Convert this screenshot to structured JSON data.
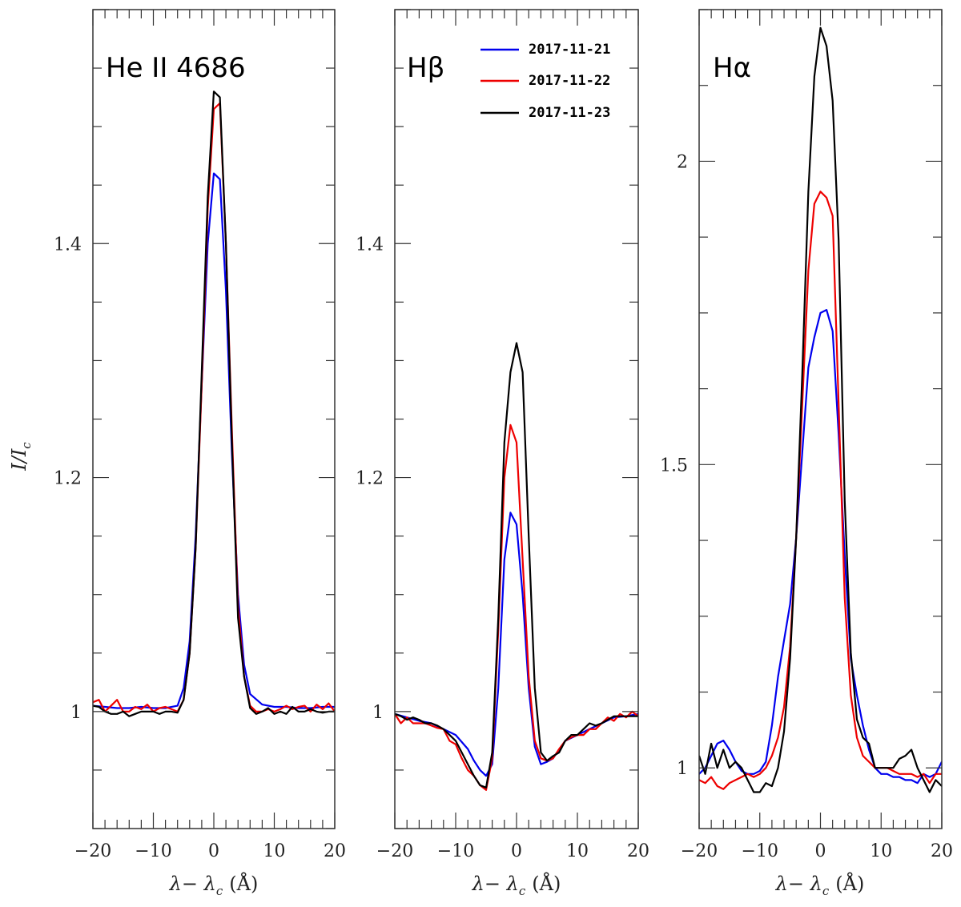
{
  "colors": {
    "2017-11-21": "#0000ee",
    "2017-11-22": "#ee0000",
    "2017-11-23": "#000000"
  },
  "legend": [
    "2017-11-21",
    "2017-11-22",
    "2017-11-23"
  ],
  "ylabel": "I/I",
  "ylabel_sub": "c",
  "chart_data": [
    {
      "type": "line",
      "title": "He II 4686",
      "xlabel": "λ− λ",
      "xlabel_sub": "c",
      "xlabel_unit": "(Å)",
      "xlim": [
        -20,
        20
      ],
      "ylim": [
        0.9,
        1.6
      ],
      "x_ticks": [
        -20,
        -10,
        0,
        10,
        20
      ],
      "x_tick_labels": [
        "−20",
        "−10",
        "0",
        "10",
        "20"
      ],
      "y_ticks": [
        1.0,
        1.2,
        1.4
      ],
      "y_tick_labels": [
        "1",
        "1.2",
        "1.4"
      ],
      "series": [
        {
          "name": "2017-11-21",
          "x": [
            -20,
            -18,
            -16,
            -14,
            -12,
            -10,
            -8,
            -6,
            -5,
            -4,
            -3,
            -2,
            -1,
            0,
            1,
            2,
            3,
            4,
            5,
            6,
            8,
            10,
            12,
            14,
            16,
            18,
            20
          ],
          "y": [
            1.005,
            1.004,
            1.003,
            1.003,
            1.004,
            1.003,
            1.003,
            1.005,
            1.02,
            1.06,
            1.15,
            1.28,
            1.4,
            1.46,
            1.455,
            1.36,
            1.22,
            1.1,
            1.04,
            1.015,
            1.006,
            1.004,
            1.004,
            1.003,
            1.003,
            1.004,
            1.004
          ]
        },
        {
          "name": "2017-11-22",
          "x": [
            -20,
            -19,
            -18,
            -17,
            -16,
            -15,
            -14,
            -13,
            -12,
            -11,
            -10,
            -9,
            -8,
            -7,
            -6,
            -5,
            -4,
            -3,
            -2,
            -1,
            0,
            1,
            2,
            3,
            4,
            5,
            6,
            7,
            8,
            9,
            10,
            11,
            12,
            13,
            14,
            15,
            16,
            17,
            18,
            19,
            20
          ],
          "y": [
            1.008,
            1.01,
            1.0,
            1.005,
            1.01,
            1.0,
            1.0,
            1.004,
            1.002,
            1.006,
            1.0,
            1.003,
            1.004,
            1.002,
            1.0,
            1.01,
            1.05,
            1.14,
            1.28,
            1.43,
            1.515,
            1.52,
            1.4,
            1.24,
            1.09,
            1.03,
            1.005,
            1.0,
            1.0,
            1.002,
            1.0,
            1.002,
            1.005,
            1.002,
            1.004,
            1.005,
            1.0,
            1.006,
            1.002,
            1.007,
            1.0
          ]
        },
        {
          "name": "2017-11-23",
          "x": [
            -20,
            -19,
            -18,
            -17,
            -16,
            -15,
            -14,
            -13,
            -12,
            -11,
            -10,
            -9,
            -8,
            -7,
            -6,
            -5,
            -4,
            -3,
            -2,
            -1,
            0,
            1,
            2,
            3,
            4,
            5,
            6,
            7,
            8,
            9,
            10,
            11,
            12,
            13,
            14,
            15,
            16,
            17,
            18,
            19,
            20
          ],
          "y": [
            1.005,
            1.004,
            1.0,
            0.998,
            0.998,
            1.0,
            0.996,
            0.998,
            1.0,
            1.0,
            1.0,
            0.998,
            1.0,
            1.0,
            0.999,
            1.01,
            1.05,
            1.14,
            1.29,
            1.44,
            1.53,
            1.525,
            1.4,
            1.23,
            1.08,
            1.03,
            1.003,
            0.998,
            1.0,
            1.003,
            0.998,
            1.0,
            0.998,
            1.004,
            1.0,
            1.0,
            1.002,
            1.0,
            0.999,
            1.0,
            1.0
          ]
        }
      ]
    },
    {
      "type": "line",
      "title": "Hβ",
      "xlabel": "λ− λ",
      "xlabel_sub": "c",
      "xlabel_unit": "(Å)",
      "xlim": [
        -20,
        20
      ],
      "ylim": [
        0.9,
        1.6
      ],
      "x_ticks": [
        -20,
        -10,
        0,
        10,
        20
      ],
      "x_tick_labels": [
        "−20",
        "−10",
        "0",
        "10",
        "20"
      ],
      "y_ticks": [
        1.0,
        1.2,
        1.4
      ],
      "y_tick_labels": [
        "1",
        "1.2",
        "1.4"
      ],
      "series": [
        {
          "name": "2017-11-21",
          "x": [
            -20,
            -18,
            -16,
            -14,
            -12,
            -10,
            -8,
            -7,
            -6,
            -5,
            -4,
            -3,
            -2,
            -1,
            0,
            1,
            2,
            3,
            4,
            5,
            6,
            8,
            10,
            12,
            14,
            16,
            18,
            20
          ],
          "y": [
            0.998,
            0.995,
            0.992,
            0.99,
            0.985,
            0.98,
            0.968,
            0.958,
            0.95,
            0.945,
            0.955,
            1.02,
            1.13,
            1.17,
            1.16,
            1.1,
            1.02,
            0.97,
            0.955,
            0.957,
            0.96,
            0.975,
            0.98,
            0.985,
            0.99,
            0.995,
            0.996,
            0.998
          ]
        },
        {
          "name": "2017-11-22",
          "x": [
            -20,
            -19,
            -18,
            -17,
            -16,
            -15,
            -14,
            -13,
            -12,
            -11,
            -10,
            -9,
            -8,
            -7,
            -6,
            -5,
            -4,
            -3,
            -2,
            -1,
            0,
            1,
            2,
            3,
            4,
            5,
            6,
            7,
            8,
            9,
            10,
            11,
            12,
            13,
            14,
            15,
            16,
            17,
            18,
            19,
            20
          ],
          "y": [
            0.998,
            0.99,
            0.995,
            0.99,
            0.99,
            0.99,
            0.988,
            0.986,
            0.985,
            0.975,
            0.972,
            0.96,
            0.95,
            0.945,
            0.937,
            0.933,
            0.96,
            1.07,
            1.2,
            1.245,
            1.23,
            1.13,
            1.03,
            0.975,
            0.96,
            0.958,
            0.96,
            0.968,
            0.975,
            0.978,
            0.98,
            0.98,
            0.985,
            0.985,
            0.99,
            0.995,
            0.992,
            0.998,
            0.995,
            1.0,
            0.996
          ]
        },
        {
          "name": "2017-11-23",
          "x": [
            -20,
            -19,
            -18,
            -17,
            -16,
            -15,
            -14,
            -13,
            -12,
            -11,
            -10,
            -9,
            -8,
            -7,
            -6,
            -5,
            -4,
            -3,
            -2,
            -1,
            0,
            1,
            2,
            3,
            4,
            5,
            6,
            7,
            8,
            9,
            10,
            11,
            12,
            13,
            14,
            15,
            16,
            17,
            18,
            19,
            20
          ],
          "y": [
            0.998,
            0.996,
            0.993,
            0.995,
            0.993,
            0.99,
            0.99,
            0.988,
            0.985,
            0.98,
            0.975,
            0.965,
            0.955,
            0.945,
            0.937,
            0.935,
            0.965,
            1.08,
            1.23,
            1.29,
            1.315,
            1.29,
            1.15,
            1.02,
            0.965,
            0.958,
            0.962,
            0.965,
            0.975,
            0.98,
            0.98,
            0.985,
            0.99,
            0.988,
            0.99,
            0.993,
            0.996,
            0.996,
            0.996,
            0.996,
            0.996
          ]
        }
      ]
    },
    {
      "type": "line",
      "title": "Hα",
      "xlabel": "λ− λ",
      "xlabel_sub": "c",
      "xlabel_unit": "(Å)",
      "xlim": [
        -20,
        20
      ],
      "ylim": [
        0.9,
        2.25
      ],
      "x_ticks": [
        -20,
        -10,
        0,
        10,
        20
      ],
      "x_tick_labels": [
        "−20",
        "−10",
        "0",
        "10",
        "20"
      ],
      "y_ticks": [
        1.0,
        1.5,
        2.0
      ],
      "y_tick_labels": [
        "1",
        "1.5",
        "2"
      ],
      "series": [
        {
          "name": "2017-11-21",
          "x": [
            -20,
            -19,
            -18,
            -17,
            -16,
            -15,
            -14,
            -13,
            -12,
            -11,
            -10,
            -9,
            -8,
            -7,
            -6,
            -5,
            -4,
            -3,
            -2,
            -1,
            0,
            1,
            2,
            3,
            4,
            5,
            6,
            7,
            8,
            9,
            10,
            11,
            12,
            13,
            14,
            15,
            16,
            17,
            18,
            19,
            20
          ],
          "y": [
            0.99,
            1.0,
            1.02,
            1.04,
            1.045,
            1.03,
            1.01,
            0.995,
            0.99,
            0.99,
            0.995,
            1.01,
            1.07,
            1.15,
            1.21,
            1.27,
            1.38,
            1.52,
            1.66,
            1.71,
            1.75,
            1.755,
            1.72,
            1.55,
            1.35,
            1.18,
            1.12,
            1.07,
            1.03,
            1.0,
            0.99,
            0.99,
            0.985,
            0.985,
            0.98,
            0.98,
            0.975,
            0.99,
            0.985,
            0.99,
            1.01
          ]
        },
        {
          "name": "2017-11-22",
          "x": [
            -20,
            -19,
            -18,
            -17,
            -16,
            -15,
            -14,
            -13,
            -12,
            -11,
            -10,
            -9,
            -8,
            -7,
            -6,
            -5,
            -4,
            -3,
            -2,
            -1,
            0,
            1,
            2,
            3,
            4,
            5,
            6,
            7,
            8,
            9,
            10,
            11,
            12,
            13,
            14,
            15,
            16,
            17,
            18,
            19,
            20
          ],
          "y": [
            0.98,
            0.975,
            0.985,
            0.97,
            0.965,
            0.975,
            0.98,
            0.985,
            0.99,
            0.985,
            0.99,
            1.0,
            1.02,
            1.05,
            1.1,
            1.2,
            1.38,
            1.6,
            1.82,
            1.93,
            1.95,
            1.94,
            1.91,
            1.6,
            1.28,
            1.12,
            1.05,
            1.02,
            1.01,
            1.0,
            1.0,
            1.0,
            0.995,
            0.99,
            0.99,
            0.99,
            0.985,
            0.99,
            0.975,
            0.99,
            0.99
          ]
        },
        {
          "name": "2017-11-23",
          "x": [
            -20,
            -19,
            -18,
            -17,
            -16,
            -15,
            -14,
            -13,
            -12,
            -11,
            -10,
            -9,
            -8,
            -7,
            -6,
            -5,
            -4,
            -3,
            -2,
            -1,
            0,
            1,
            2,
            3,
            4,
            5,
            6,
            7,
            8,
            9,
            10,
            11,
            12,
            13,
            14,
            15,
            16,
            17,
            18,
            19,
            20
          ],
          "y": [
            1.02,
            0.99,
            1.04,
            1.0,
            1.03,
            1.0,
            1.01,
            1.0,
            0.98,
            0.96,
            0.96,
            0.975,
            0.97,
            1.0,
            1.06,
            1.18,
            1.38,
            1.65,
            1.95,
            2.14,
            2.22,
            2.19,
            2.1,
            1.87,
            1.44,
            1.19,
            1.08,
            1.05,
            1.04,
            1.0,
            1.0,
            1.0,
            1.0,
            1.015,
            1.02,
            1.03,
            1.0,
            0.98,
            0.96,
            0.98,
            0.97
          ]
        }
      ]
    }
  ]
}
